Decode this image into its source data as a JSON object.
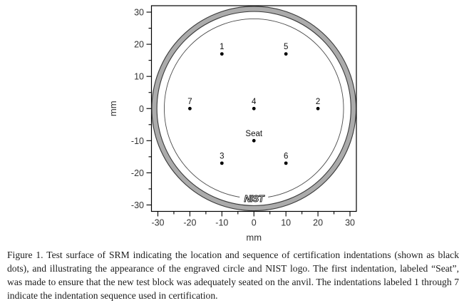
{
  "figure": {
    "caption": "Figure 1.  Test surface of SRM indicating the location and sequence of certification indentations (shown as black dots), and illustrating the appearance of the engraved circle and NIST logo.  The first indentation, labeled “Seat”, was made to ensure that the new test block was adequately seated on the anvil.  The indentations labeled 1 through 7 indicate the indentation sequence used in certification."
  },
  "chart_data": {
    "type": "scatter",
    "title": "",
    "xlabel": "mm",
    "ylabel": "mm",
    "xlim": [
      -32,
      32
    ],
    "ylim": [
      -32,
      32
    ],
    "x_major_ticks": [
      -30,
      -20,
      -10,
      0,
      10,
      20,
      30
    ],
    "y_major_ticks": [
      -30,
      -20,
      -10,
      0,
      10,
      20,
      30
    ],
    "minor_tick_interval": 5,
    "grid": "off",
    "points": [
      {
        "label": "Seat",
        "x": 0,
        "y": -10
      },
      {
        "label": "1",
        "x": -10,
        "y": 17
      },
      {
        "label": "2",
        "x": 20,
        "y": 0
      },
      {
        "label": "3",
        "x": -10,
        "y": -17
      },
      {
        "label": "4",
        "x": 0,
        "y": 0
      },
      {
        "label": "5",
        "x": 10,
        "y": 17
      },
      {
        "label": "6",
        "x": 10,
        "y": -17
      },
      {
        "label": "7",
        "x": -20,
        "y": 0
      }
    ],
    "point_color": "#000000",
    "outer_ring": {
      "outer_radius_mm": 31.9,
      "inner_radius_mm": 30.3,
      "fill": "#ababab",
      "stroke": "#3a3a3a"
    },
    "engraved_circle": {
      "radius_mm": 28.0,
      "stroke": "#4a4a4a"
    },
    "logo": {
      "text": "NIST",
      "x": 0,
      "y": -28
    },
    "axis_color": "#000000",
    "tick_label_color": "#333333"
  }
}
